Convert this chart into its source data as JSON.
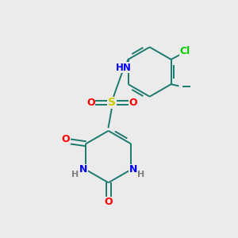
{
  "background_color": "#ebebeb",
  "atom_colors": {
    "C": "#1a7a6e",
    "N": "#0000ff",
    "O": "#ff0000",
    "S": "#cccc00",
    "Cl": "#00cc00",
    "H": "#808080"
  },
  "figsize": [
    3.0,
    3.0
  ],
  "dpi": 100
}
